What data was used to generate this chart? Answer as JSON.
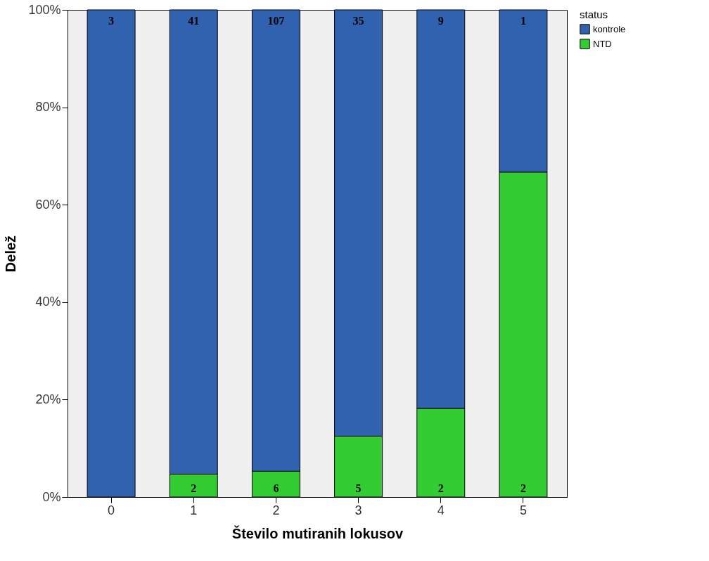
{
  "chart_data": {
    "type": "bar",
    "stacked": true,
    "xlabel": "Število mutiranih lokusov",
    "ylabel": "Delež",
    "legend_title": "status",
    "legend": "top right",
    "grid": false,
    "categories": [
      "0",
      "1",
      "2",
      "3",
      "4",
      "5"
    ],
    "series": [
      {
        "name": "NTD",
        "color": "#33cc33",
        "values": [
          0,
          4.7,
          5.3,
          12.5,
          18.2,
          66.7
        ]
      },
      {
        "name": "kontrole",
        "color": "#3162b0",
        "values": [
          100,
          95.3,
          94.7,
          87.5,
          81.8,
          33.3
        ]
      }
    ],
    "annotations": [
      {
        "text": "3",
        "x": "0",
        "y": 100
      },
      {
        "text": "41",
        "x": "1",
        "y": 100
      },
      {
        "text": "107",
        "x": "2",
        "y": 100
      },
      {
        "text": "35",
        "x": "3",
        "y": 100
      },
      {
        "text": "9",
        "x": "4",
        "y": 100
      },
      {
        "text": "1",
        "x": "5",
        "y": 100
      },
      {
        "text": "2",
        "x": "1",
        "y": 0
      },
      {
        "text": "6",
        "x": "2",
        "y": 0
      },
      {
        "text": "5",
        "x": "3",
        "y": 0
      },
      {
        "text": "2",
        "x": "4",
        "y": 0
      },
      {
        "text": "2",
        "x": "5",
        "y": 0
      }
    ],
    "ylim": [
      0,
      100
    ],
    "yticks": [
      {
        "value": 0,
        "label": "0%"
      },
      {
        "value": 20,
        "label": "20%"
      },
      {
        "value": 40,
        "label": "40%"
      },
      {
        "value": 60,
        "label": "60%"
      },
      {
        "value": 80,
        "label": "80%"
      },
      {
        "value": 100,
        "label": "100%"
      }
    ]
  }
}
